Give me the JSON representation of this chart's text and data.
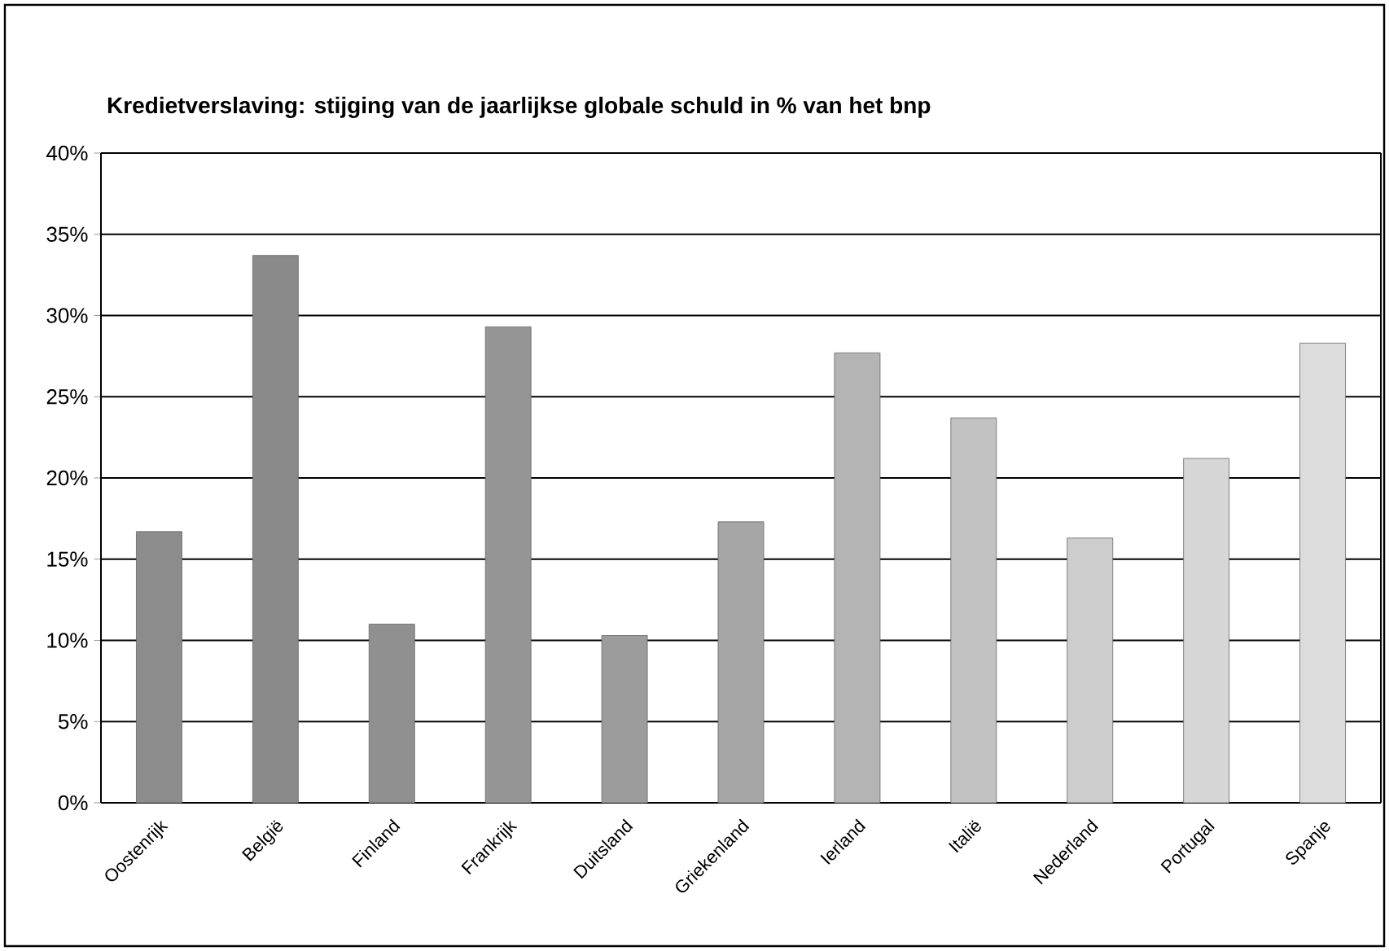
{
  "chart_data": {
    "type": "bar",
    "title": "Kredietverslaving: stijging van de jaarlijkse globale schuld in % van het bnp",
    "categories": [
      "Oostenrijk",
      "België",
      "Finland",
      "Frankrijk",
      "Duitsland",
      "Griekenland",
      "Ierland",
      "Italië",
      "Nederland",
      "Portugal",
      "Spanje"
    ],
    "values": [
      16.7,
      33.7,
      11.0,
      29.3,
      10.3,
      17.3,
      27.7,
      23.7,
      16.3,
      21.2,
      28.3
    ],
    "colors": [
      "#8c8c8c",
      "#8a8a8a",
      "#909090",
      "#959595",
      "#9c9c9c",
      "#a6a6a6",
      "#b4b4b4",
      "#c2c2c2",
      "#cdcdcd",
      "#d6d6d6",
      "#dcdcdc"
    ],
    "ylim": [
      0,
      40
    ],
    "yticks": [
      {
        "value": 0,
        "label": "0%"
      },
      {
        "value": 5,
        "label": "5%"
      },
      {
        "value": 10,
        "label": "10%"
      },
      {
        "value": 15,
        "label": "15%"
      },
      {
        "value": 20,
        "label": "20%"
      },
      {
        "value": 25,
        "label": "25%"
      },
      {
        "value": 30,
        "label": "30%"
      },
      {
        "value": 35,
        "label": "35%"
      },
      {
        "value": 40,
        "label": "40%"
      }
    ],
    "grid": "y"
  }
}
